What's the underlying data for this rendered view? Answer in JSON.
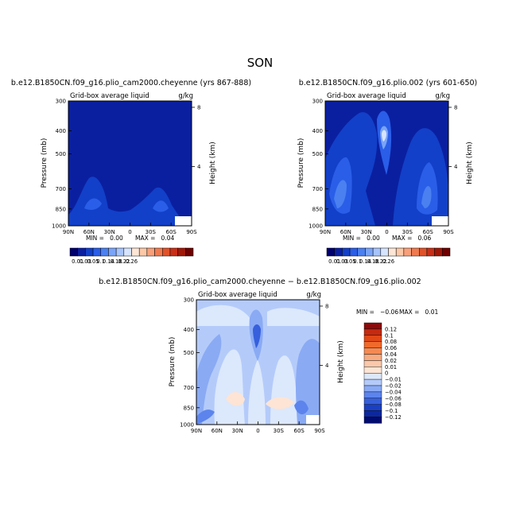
{
  "figure_title": "SON",
  "chart_data": [
    {
      "type": "heatmap",
      "title": "b.e12.B1850CN.f09_g16.plio_cam2000.cheyenne (yrs 867-888)",
      "subtitle": "Grid-box average liquid",
      "units": "g/kg",
      "ylabel": "Pressure (mb)",
      "ylabel_right": "Height (km)",
      "x_ticks": [
        "90N",
        "60N",
        "30N",
        "0",
        "30S",
        "60S",
        "90S"
      ],
      "y_ticks": [
        "300",
        "400",
        "500",
        "700",
        "850",
        "1000"
      ],
      "y_ticks_right": [
        "8",
        "4"
      ],
      "min_text": "MIN =   0.00",
      "max_text": "MAX =   0.04",
      "min": 0.0,
      "max": 0.04
    },
    {
      "type": "heatmap",
      "title": "b.e12.B1850CN.f09_g16.plio.002 (yrs 601-650)",
      "subtitle": "Grid-box average liquid",
      "units": "g/kg",
      "ylabel": "Pressure (mb)",
      "ylabel_right": "Height (km)",
      "x_ticks": [
        "90N",
        "60N",
        "30N",
        "0",
        "30S",
        "60S",
        "90S"
      ],
      "y_ticks": [
        "300",
        "400",
        "500",
        "700",
        "850",
        "1000"
      ],
      "y_ticks_right": [
        "8",
        "4"
      ],
      "min_text": "MIN =   0.00",
      "max_text": "MAX =   0.06",
      "min": 0.0,
      "max": 0.06
    },
    {
      "type": "heatmap",
      "title": "b.e12.B1850CN.f09_g16.plio_cam2000.cheyenne − b.e12.B1850CN.f09_g16.plio.002",
      "subtitle": "Grid-box average liquid",
      "units": "g/kg",
      "ylabel": "Pressure (mb)",
      "ylabel_right": "Height (km)",
      "x_ticks": [
        "90N",
        "60N",
        "30N",
        "0",
        "30S",
        "60S",
        "90S"
      ],
      "y_ticks": [
        "300",
        "400",
        "500",
        "700",
        "850",
        "1000"
      ],
      "y_ticks_right": [
        "8",
        "4"
      ],
      "min_text": "MIN =   −0.06",
      "max_text": "MAX =   0.01",
      "min": -0.06,
      "max": 0.01
    }
  ],
  "colorbar_abs": {
    "labels": [
      "0.01",
      "0.03",
      "0.05",
      "0.1",
      "0.14",
      "0.18",
      "0.22",
      "0.26"
    ],
    "colors": [
      "#00006e",
      "#0a1fa0",
      "#1240c8",
      "#2a5ee8",
      "#4a80f0",
      "#7aa4f8",
      "#a8c4fc",
      "#d6e4fe",
      "#fde6d6",
      "#fcc8a8",
      "#f8a07a",
      "#f07a50",
      "#e0522a",
      "#c83018",
      "#a01808",
      "#700000"
    ]
  },
  "colorbar_diff": {
    "labels": [
      "0.12",
      "0.1",
      "0.08",
      "0.06",
      "0.04",
      "0.02",
      "0.01",
      "0",
      "−0.01",
      "−0.02",
      "−0.04",
      "−0.06",
      "−0.08",
      "−0.1",
      "−0.12"
    ],
    "colors": [
      "#8e0a0a",
      "#c42a10",
      "#e04818",
      "#f06a2c",
      "#f48a52",
      "#f8aa80",
      "#fac8aa",
      "#fde4d4",
      "#dce8fc",
      "#b4cbfa",
      "#8aaaf4",
      "#5c84ec",
      "#3660dc",
      "#1a40c4",
      "#0c28a0",
      "#000c6e"
    ]
  }
}
